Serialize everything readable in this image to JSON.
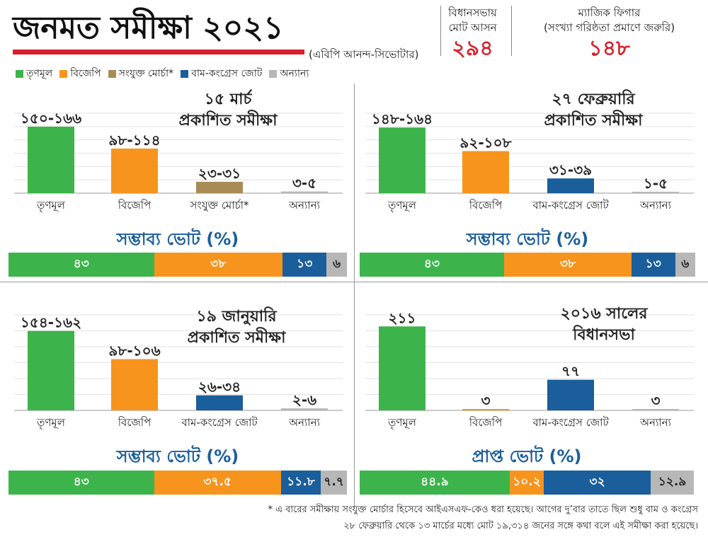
{
  "header": {
    "title": "জনমত সমীক্ষা ২০২১",
    "source": "(এবিপি আনন্দ-সিভোটার)"
  },
  "info": {
    "seats_label_1": "বিধানসভায়",
    "seats_label_2": "মোট আসন",
    "seats_value": "২৯৪",
    "magic_label_1": "ম্যাজিক ফিগার",
    "magic_label_2": "(সংখ্যা গরিষ্ঠতা প্রমাণে জরুরি)",
    "magic_value": "১৪৮"
  },
  "legend": [
    {
      "label": "তৃণমূল",
      "color": "#3cb44b"
    },
    {
      "label": "বিজেপি",
      "color": "#f7941d"
    },
    {
      "label": "সংযুক্ত মোর্চা*",
      "color": "#a88b55"
    },
    {
      "label": "বাম-কংগ্রেস জোট",
      "color": "#1a5e9b"
    },
    {
      "label": "অন্যান্য",
      "color": "#b7b7b7"
    }
  ],
  "colors": {
    "tmc": "#3cb44b",
    "bjp": "#f7941d",
    "sm": "#a88b55",
    "left": "#1a5e9b",
    "other": "#b7b7b7"
  },
  "chart_data": [
    {
      "type": "bar",
      "title_line1": "১৫ মার্চ",
      "title_line2": "প্রকাশিত সমীক্ষা",
      "categories": [
        "তৃণমূল",
        "বিজেপি",
        "সংযুক্ত মোর্চা*",
        "অন্যান্য"
      ],
      "colors": [
        "tmc",
        "bjp",
        "sm",
        "other"
      ],
      "values": [
        158,
        106,
        27,
        4
      ],
      "data_labels": [
        "১৫০-১৬৬",
        "৯৮-১১৪",
        "২৩-৩১",
        "৩-৫"
      ],
      "ylim": [
        0,
        190
      ],
      "vote_title": "সম্ভাব্য ভোট (%)",
      "vote_shares": [
        {
          "value": 43,
          "label": "৪৩",
          "color": "tmc"
        },
        {
          "value": 38,
          "label": "৩৮",
          "color": "bjp"
        },
        {
          "value": 13,
          "label": "১৩",
          "color": "left"
        },
        {
          "value": 6,
          "label": "৬",
          "color": "other"
        }
      ]
    },
    {
      "type": "bar",
      "title_line1": "২৭ ফেব্রুয়ারি",
      "title_line2": "প্রকাশিত সমীক্ষা",
      "categories": [
        "তৃণমূল",
        "বিজেপি",
        "বাম-কংগ্রেস জোট",
        "অন্যান্য"
      ],
      "colors": [
        "tmc",
        "bjp",
        "left",
        "other"
      ],
      "values": [
        156,
        100,
        35,
        3
      ],
      "data_labels": [
        "১৪৮-১৬৪",
        "৯২-১০৮",
        "৩১-৩৯",
        "১-৫"
      ],
      "ylim": [
        0,
        190
      ],
      "vote_title": "সম্ভাব্য ভোট (%)",
      "vote_shares": [
        {
          "value": 43,
          "label": "৪৩",
          "color": "tmc"
        },
        {
          "value": 38,
          "label": "৩৮",
          "color": "bjp"
        },
        {
          "value": 13,
          "label": "১৩",
          "color": "left"
        },
        {
          "value": 6,
          "label": "৬",
          "color": "other"
        }
      ]
    },
    {
      "type": "bar",
      "title_line1": "১৯ জানুয়ারি",
      "title_line2": "প্রকাশিত সমীক্ষা",
      "categories": [
        "তৃণমূল",
        "বিজেপি",
        "বাম-কংগ্রেস জোট",
        "অন্যান্য"
      ],
      "colors": [
        "tmc",
        "bjp",
        "left",
        "other"
      ],
      "values": [
        158,
        102,
        30,
        4
      ],
      "data_labels": [
        "১৫৪-১৬২",
        "৯৮-১০৬",
        "২৬-৩৪",
        "২-৬"
      ],
      "ylim": [
        0,
        190
      ],
      "vote_title": "সম্ভাব্য ভোট (%)",
      "vote_shares": [
        {
          "value": 43,
          "label": "৪৩",
          "color": "tmc"
        },
        {
          "value": 37.5,
          "label": "৩৭.৫",
          "color": "bjp"
        },
        {
          "value": 11.8,
          "label": "১১.৮",
          "color": "left"
        },
        {
          "value": 7.7,
          "label": "৭.৭",
          "color": "other"
        }
      ]
    },
    {
      "type": "bar",
      "title_line1": "২০১৬ সালের",
      "title_line2": "বিধানসভা",
      "categories": [
        "তৃণমূল",
        "বিজেপি",
        "বাম-কংগ্রেস জোট",
        "অন্যান্য"
      ],
      "colors": [
        "tmc",
        "bjp",
        "left",
        "other"
      ],
      "values": [
        211,
        3,
        77,
        3
      ],
      "data_labels": [
        "২১১",
        "৩",
        "৭৭",
        "৩"
      ],
      "ylim": [
        0,
        240
      ],
      "vote_title": "প্রাপ্ত ভোট (%)",
      "vote_shares": [
        {
          "value": 44.9,
          "label": "৪৪.৯",
          "color": "tmc"
        },
        {
          "value": 10.2,
          "label": "১০.২",
          "color": "bjp"
        },
        {
          "value": 32,
          "label": "৩২",
          "color": "left"
        },
        {
          "value": 12.9,
          "label": "১২.৯",
          "color": "other"
        }
      ]
    }
  ],
  "footnotes": {
    "line1": "* এ বারের সমীক্ষায় সংযুক্ত মোর্চার হিসেবে আইএসএফ-কেও ধরা হয়েছে। আগের দু’বার তাতে ছিল শুধু বাম ও কংগ্রেস",
    "line2": "২৮ ফেব্রুয়ারি থেকে ১৩ মার্চের মধ্যে মোট ১৯,৩১৪ জনের সঙ্গে কথা বলে এই সমীক্ষা করা হয়েছে।"
  }
}
